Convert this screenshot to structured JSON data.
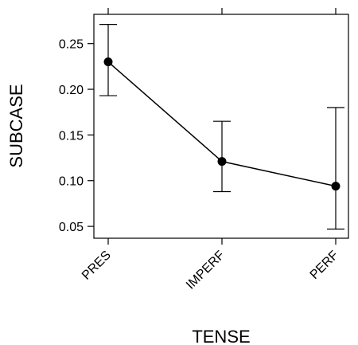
{
  "chart_data": {
    "type": "line",
    "xlabel": "TENSE",
    "ylabel": "SUBCASE",
    "categories": [
      "PRES",
      "IMPERF",
      "PERF"
    ],
    "series": [
      {
        "values": [
          0.23,
          0.121,
          0.094
        ],
        "lower": [
          0.193,
          0.088,
          0.047
        ],
        "upper": [
          0.271,
          0.165,
          0.18
        ]
      }
    ],
    "yticks": [
      "0.05",
      "0.10",
      "0.15",
      "0.20",
      "0.25"
    ],
    "ylim": [
      0.037,
      0.282
    ],
    "grid": false,
    "colors": {
      "line": "#000000",
      "point": "#000000",
      "axis": "#000000"
    }
  }
}
